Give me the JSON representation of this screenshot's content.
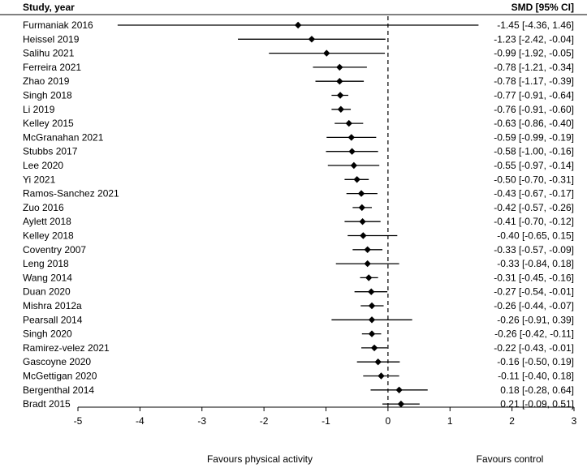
{
  "chart_data": {
    "type": "forest",
    "header_left": "Study, year",
    "header_right": "SMD [95% CI]",
    "x_ticks": [
      -5,
      -4,
      -3,
      -2,
      -1,
      0,
      1,
      2,
      3
    ],
    "xlim": [
      -5,
      3
    ],
    "reference_line": 0,
    "footer_left": "Favours physical activity",
    "footer_right": "Favours control",
    "studies": [
      {
        "name": "Furmaniak 2016",
        "smd": -1.45,
        "lo": -4.36,
        "hi": 1.46,
        "ci_text": "-1.45 [-4.36, 1.46]"
      },
      {
        "name": "Heissel 2019",
        "smd": -1.23,
        "lo": -2.42,
        "hi": -0.04,
        "ci_text": "-1.23 [-2.42, -0.04]"
      },
      {
        "name": "Salihu 2021",
        "smd": -0.99,
        "lo": -1.92,
        "hi": -0.05,
        "ci_text": "-0.99 [-1.92, -0.05]"
      },
      {
        "name": "Ferreira 2021",
        "smd": -0.78,
        "lo": -1.21,
        "hi": -0.34,
        "ci_text": "-0.78 [-1.21, -0.34]"
      },
      {
        "name": "Zhao 2019",
        "smd": -0.78,
        "lo": -1.17,
        "hi": -0.39,
        "ci_text": "-0.78 [-1.17, -0.39]"
      },
      {
        "name": "Singh 2018",
        "smd": -0.77,
        "lo": -0.91,
        "hi": -0.64,
        "ci_text": "-0.77 [-0.91, -0.64]"
      },
      {
        "name": "Li 2019",
        "smd": -0.76,
        "lo": -0.91,
        "hi": -0.6,
        "ci_text": "-0.76 [-0.91, -0.60]"
      },
      {
        "name": "Kelley 2015",
        "smd": -0.63,
        "lo": -0.86,
        "hi": -0.4,
        "ci_text": "-0.63 [-0.86, -0.40]"
      },
      {
        "name": "McGranahan 2021",
        "smd": -0.59,
        "lo": -0.99,
        "hi": -0.19,
        "ci_text": "-0.59 [-0.99, -0.19]"
      },
      {
        "name": "Stubbs 2017",
        "smd": -0.58,
        "lo": -1.0,
        "hi": -0.16,
        "ci_text": "-0.58 [-1.00, -0.16]"
      },
      {
        "name": "Lee 2020",
        "smd": -0.55,
        "lo": -0.97,
        "hi": -0.14,
        "ci_text": "-0.55 [-0.97, -0.14]"
      },
      {
        "name": "Yi 2021",
        "smd": -0.5,
        "lo": -0.7,
        "hi": -0.31,
        "ci_text": "-0.50 [-0.70, -0.31]"
      },
      {
        "name": "Ramos-Sanchez 2021",
        "smd": -0.43,
        "lo": -0.67,
        "hi": -0.17,
        "ci_text": "-0.43 [-0.67, -0.17]"
      },
      {
        "name": "Zuo 2016",
        "smd": -0.42,
        "lo": -0.57,
        "hi": -0.26,
        "ci_text": "-0.42 [-0.57, -0.26]"
      },
      {
        "name": "Aylett 2018",
        "smd": -0.41,
        "lo": -0.7,
        "hi": -0.12,
        "ci_text": "-0.41 [-0.70, -0.12]"
      },
      {
        "name": "Kelley 2018",
        "smd": -0.4,
        "lo": -0.65,
        "hi": 0.15,
        "ci_text": "-0.40 [-0.65, 0.15]"
      },
      {
        "name": "Coventry 2007",
        "smd": -0.33,
        "lo": -0.57,
        "hi": -0.09,
        "ci_text": "-0.33 [-0.57, -0.09]"
      },
      {
        "name": "Leng 2018",
        "smd": -0.33,
        "lo": -0.84,
        "hi": 0.18,
        "ci_text": "-0.33 [-0.84, 0.18]"
      },
      {
        "name": "Wang 2014",
        "smd": -0.31,
        "lo": -0.45,
        "hi": -0.16,
        "ci_text": "-0.31 [-0.45, -0.16]"
      },
      {
        "name": "Duan 2020",
        "smd": -0.27,
        "lo": -0.54,
        "hi": -0.01,
        "ci_text": "-0.27 [-0.54, -0.01]"
      },
      {
        "name": "Mishra 2012a",
        "smd": -0.26,
        "lo": -0.44,
        "hi": -0.07,
        "ci_text": "-0.26 [-0.44, -0.07]"
      },
      {
        "name": "Pearsall 2014",
        "smd": -0.26,
        "lo": -0.91,
        "hi": 0.39,
        "ci_text": "-0.26 [-0.91, 0.39]"
      },
      {
        "name": "Singh 2020",
        "smd": -0.26,
        "lo": -0.42,
        "hi": -0.11,
        "ci_text": "-0.26 [-0.42, -0.11]"
      },
      {
        "name": "Ramirez-velez 2021",
        "smd": -0.22,
        "lo": -0.43,
        "hi": -0.01,
        "ci_text": "-0.22 [-0.43, -0.01]"
      },
      {
        "name": "Gascoyne 2020",
        "smd": -0.16,
        "lo": -0.5,
        "hi": 0.19,
        "ci_text": "-0.16 [-0.50, 0.19]"
      },
      {
        "name": "McGettigan 2020",
        "smd": -0.11,
        "lo": -0.4,
        "hi": 0.18,
        "ci_text": "-0.11 [-0.40, 0.18]"
      },
      {
        "name": "Bergenthal 2014",
        "smd": 0.18,
        "lo": -0.28,
        "hi": 0.64,
        "ci_text": "0.18 [-0.28, 0.64]"
      },
      {
        "name": "Bradt 2015",
        "smd": 0.21,
        "lo": -0.09,
        "hi": 0.51,
        "ci_text": "0.21 [-0.09, 0.51]"
      }
    ]
  }
}
